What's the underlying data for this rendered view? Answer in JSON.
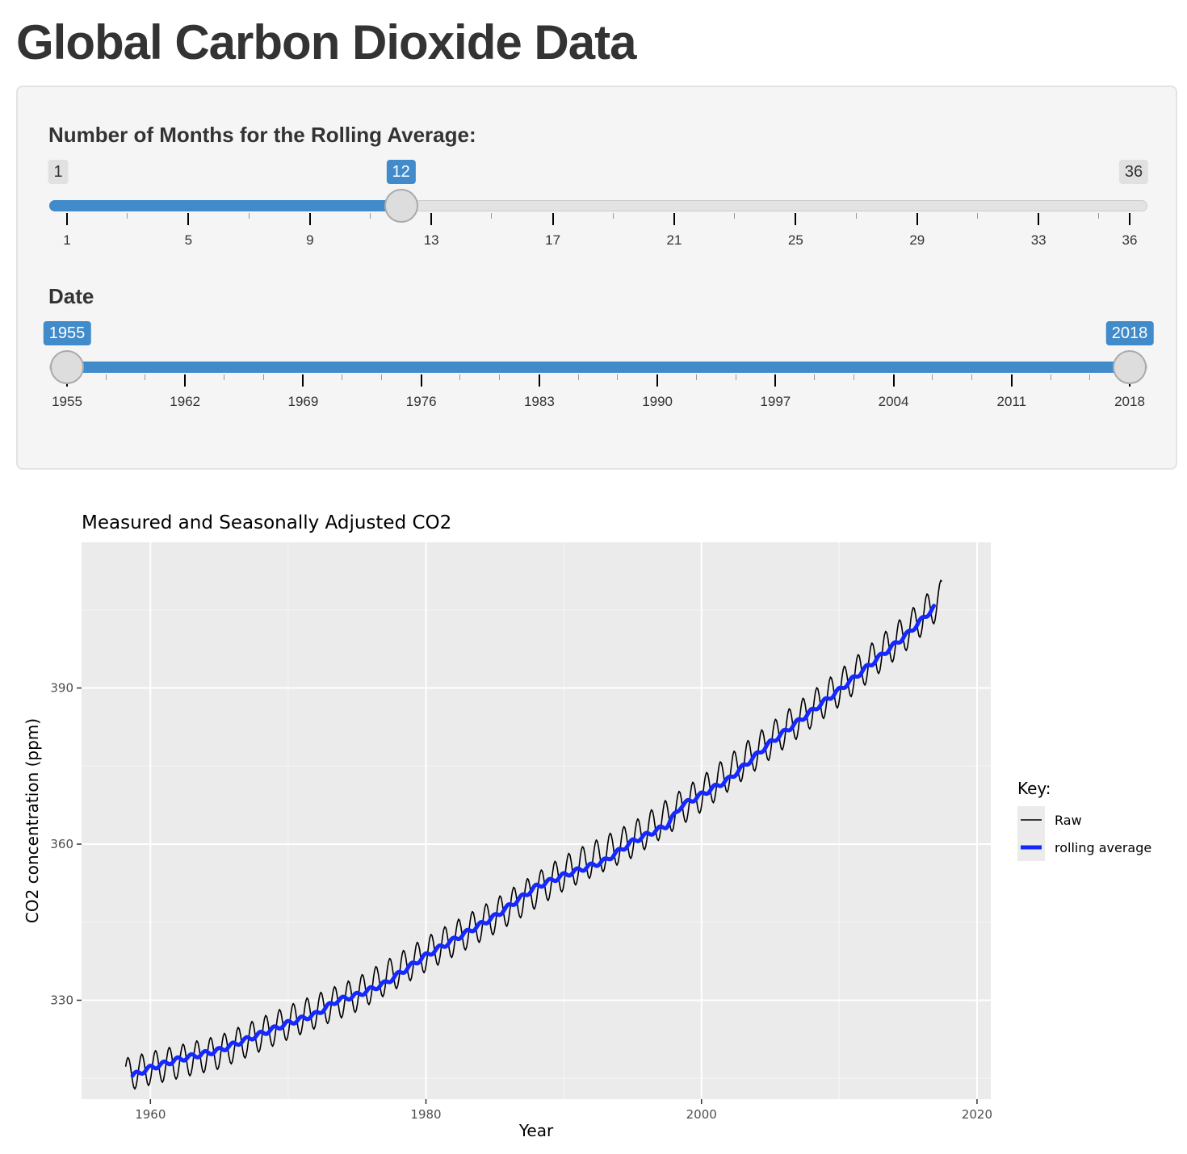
{
  "page": {
    "title": "Global Carbon Dioxide Data"
  },
  "rolling_slider": {
    "label": "Number of Months for the Rolling Average:",
    "min": 1,
    "max": 36,
    "value": 12,
    "min_label": "1",
    "max_label": "36",
    "value_label": "12",
    "tick_labels": [
      "1",
      "5",
      "9",
      "13",
      "17",
      "21",
      "25",
      "29",
      "33",
      "36"
    ]
  },
  "date_slider": {
    "label": "Date",
    "min": 1955,
    "max": 2018,
    "from": 1955,
    "to": 2018,
    "from_label": "1955",
    "to_label": "2018",
    "tick_labels": [
      "1955",
      "1962",
      "1969",
      "1976",
      "1983",
      "1990",
      "1997",
      "2004",
      "2011",
      "2018"
    ]
  },
  "colors": {
    "accent": "#428bca",
    "raw_line": "#000000",
    "rolling_line": "#1428ff",
    "plot_bg": "#ebebeb"
  },
  "chart_data": {
    "type": "line",
    "title": "Measured and Seasonally Adjusted CO2",
    "xlabel": "Year",
    "ylabel": "CO2 concentration (ppm)",
    "xlim": [
      1955,
      2021
    ],
    "ylim": [
      311,
      418
    ],
    "x_ticks": [
      "1960",
      "1980",
      "2000",
      "2020"
    ],
    "y_ticks": [
      "330",
      "360",
      "390"
    ],
    "grid": true,
    "legend_title": "Key:",
    "legend_position": "right",
    "series": [
      {
        "name": "Raw",
        "color": "#000000",
        "x": [
          1958.2,
          1960,
          1965,
          1970,
          1975,
          1980,
          1985,
          1990,
          1995,
          2000,
          2005,
          2010,
          2015,
          2017.5
        ],
        "values": [
          315.7,
          316.9,
          320.0,
          325.7,
          331.1,
          338.8,
          346.1,
          354.4,
          360.8,
          369.6,
          379.8,
          389.9,
          401.0,
          407.5
        ],
        "seasonal_amplitude": 3.2
      },
      {
        "name": "rolling average",
        "color": "#1428ff",
        "x": [
          1958.7,
          1960,
          1962,
          1965,
          1970,
          1972,
          1973.5,
          1975,
          1977,
          1980,
          1985,
          1988,
          1990,
          1993,
          1995,
          1997.5,
          1998.5,
          2000,
          2002,
          2005,
          2010,
          2015,
          2016.9
        ],
        "values": [
          315.5,
          317.0,
          318.6,
          320.4,
          325.6,
          327.3,
          329.9,
          331.0,
          333.2,
          338.6,
          346.1,
          351.8,
          354.0,
          356.8,
          360.5,
          363.6,
          367.3,
          369.5,
          372.5,
          379.5,
          389.6,
          400.5,
          405.5
        ]
      }
    ]
  }
}
